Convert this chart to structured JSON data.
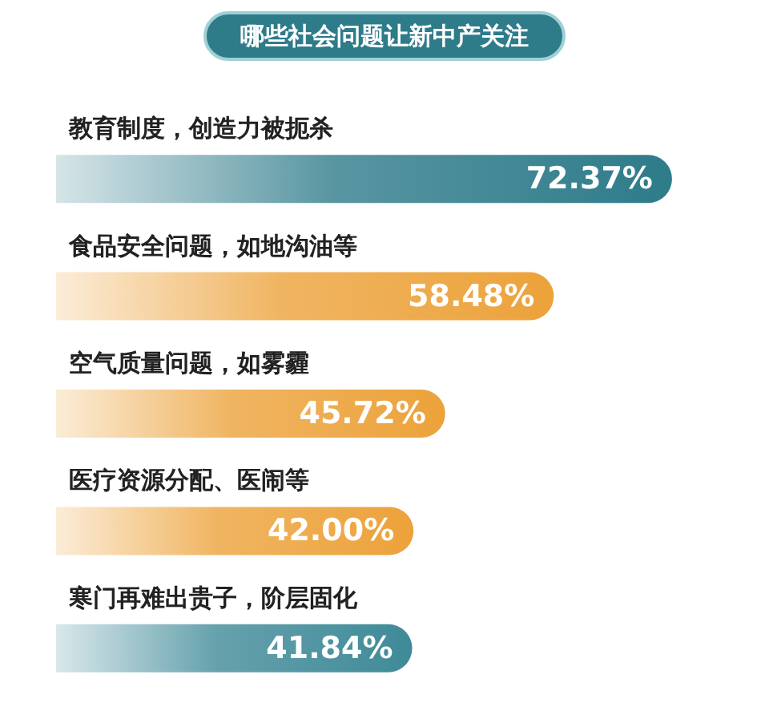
{
  "chart_data": {
    "type": "bar",
    "orientation": "horizontal",
    "title": "哪些社会问题让新中产关注",
    "categories": [
      "教育制度，创造力被扼杀",
      "食品安全问题，如地沟油等",
      "空气质量问题，如雾霾",
      "医疗资源分配、医闹等",
      "寒门再难出贵子，阶层固化"
    ],
    "values": [
      72.37,
      58.48,
      45.72,
      42.0,
      41.84
    ],
    "value_labels": [
      "72.37%",
      "58.48%",
      "45.72%",
      "42.00%",
      "41.84%"
    ],
    "colors": [
      "#2e7b8a",
      "#eca23a",
      "#eca23a",
      "#eca23a",
      "#3f8a98"
    ],
    "tick_labels": "y"
  }
}
